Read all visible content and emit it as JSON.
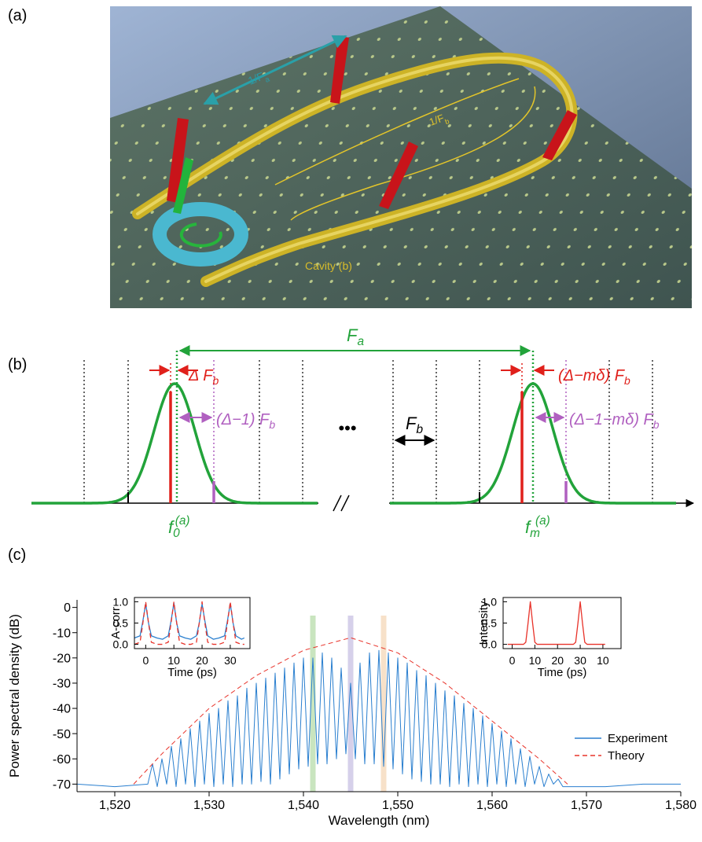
{
  "panel_a": {
    "label": "(a)",
    "annotations": [
      {
        "text": "1/F",
        "sub": "a"
      },
      {
        "text": "1/F",
        "sub": "b"
      },
      {
        "text": "Cavity (b)"
      }
    ]
  },
  "panel_b": {
    "label": "(b)",
    "annotations": [
      {
        "text": "F",
        "sub": "a"
      },
      {
        "text": "Δ F",
        "sub": "b"
      },
      {
        "text": "(Δ−mδ) F",
        "sub": "b"
      },
      {
        "text": "(Δ−1) F",
        "sub": "b"
      },
      {
        "text": "(Δ−1−mδ) F",
        "sub": "b"
      },
      {
        "text": "•••"
      },
      {
        "text": "F",
        "sub": "b"
      },
      {
        "text": "f",
        "sub": "0",
        "sup": "(a)"
      },
      {
        "text": "f",
        "sub": "m",
        "sup": "(a)"
      }
    ]
  },
  "panel_c": {
    "label": "(c)"
  },
  "chart_data": [
    {
      "type": "line",
      "xlabel": "Wavelength (nm)",
      "ylabel": "Power spectral density (dB)",
      "xlim": [
        1516,
        1580
      ],
      "ylim": [
        -73,
        3
      ],
      "xticks": [
        {
          "value": 1520,
          "label": "1,520"
        },
        {
          "value": 1530,
          "label": "1,530"
        },
        {
          "value": 1540,
          "label": "1,540"
        },
        {
          "value": 1550,
          "label": "1,550"
        },
        {
          "value": 1560,
          "label": "1,560"
        },
        {
          "value": 1570,
          "label": "1,570"
        },
        {
          "value": 1580,
          "label": "1,580"
        }
      ],
      "yticks": [
        0,
        -10,
        -20,
        -30,
        -40,
        -50,
        -60,
        -70
      ],
      "legend": "right",
      "bands": [
        {
          "x": 1541,
          "color": "#bfe0b4"
        },
        {
          "x": 1545,
          "color": "#cfc8e6"
        },
        {
          "x": 1548.5,
          "color": "#f6dcc0"
        }
      ],
      "series": [
        {
          "name": "Experiment",
          "color": "#2a7fcf",
          "linestyle": "solid",
          "x": [
            1516,
            1520,
            1523.5,
            1524,
            1524.5,
            1525,
            1525.5,
            1526,
            1526.5,
            1527,
            1527.5,
            1528,
            1528.5,
            1529,
            1529.5,
            1530,
            1530.5,
            1531,
            1531.5,
            1532,
            1532.5,
            1533,
            1533.5,
            1534,
            1534.5,
            1535,
            1535.5,
            1536,
            1536.5,
            1537,
            1537.5,
            1538,
            1538.5,
            1539,
            1539.5,
            1540,
            1540.5,
            1541,
            1541.5,
            1542,
            1542.5,
            1543,
            1543.5,
            1544,
            1544.5,
            1545,
            1545.5,
            1546,
            1546.5,
            1547,
            1547.5,
            1548,
            1548.5,
            1549,
            1549.5,
            1550,
            1550.5,
            1551,
            1551.5,
            1552,
            1552.5,
            1553,
            1553.5,
            1554,
            1554.5,
            1555,
            1555.5,
            1556,
            1556.5,
            1557,
            1557.5,
            1558,
            1558.5,
            1559,
            1559.5,
            1560,
            1560.5,
            1561,
            1561.5,
            1562,
            1562.5,
            1563,
            1563.5,
            1564,
            1564.5,
            1565,
            1565.5,
            1566,
            1566.5,
            1567,
            1567.5,
            1572,
            1576,
            1580
          ],
          "values": [
            -70,
            -71,
            -70,
            -62,
            -71,
            -60,
            -70,
            -55,
            -71,
            -52,
            -70,
            -48,
            -71,
            -45,
            -70,
            -42,
            -71,
            -40,
            -70,
            -37,
            -71,
            -35,
            -70,
            -32,
            -70,
            -30,
            -69,
            -28,
            -70,
            -26,
            -68,
            -24,
            -66,
            -22,
            -64,
            -20,
            -63,
            -20,
            -62,
            -18,
            -62,
            -20,
            -60,
            -24,
            -58,
            -30,
            -60,
            -22,
            -62,
            -18,
            -62,
            -17,
            -63,
            -18,
            -64,
            -20,
            -66,
            -22,
            -68,
            -25,
            -69,
            -27,
            -70,
            -30,
            -70,
            -33,
            -71,
            -35,
            -70,
            -38,
            -71,
            -40,
            -70,
            -43,
            -71,
            -46,
            -70,
            -49,
            -71,
            -52,
            -70,
            -56,
            -71,
            -59,
            -70,
            -63,
            -71,
            -66,
            -70,
            -68,
            -71,
            -71,
            -70,
            -70
          ]
        },
        {
          "name": "Theory",
          "color": "#e8332a",
          "linestyle": "dashed",
          "x": [
            1522,
            1525,
            1530,
            1535,
            1540,
            1545,
            1550,
            1555,
            1560,
            1565,
            1568
          ],
          "values": [
            -70,
            -58,
            -40,
            -27,
            -17,
            -12,
            -18,
            -30,
            -45,
            -60,
            -70
          ]
        }
      ]
    },
    {
      "type": "line",
      "xlabel": "Time (ps)",
      "ylabel": "A-corr",
      "xlim": [
        -4,
        37
      ],
      "ylim": [
        -0.1,
        1.1
      ],
      "xticks": [
        0,
        10,
        20,
        30
      ],
      "yticks": [
        {
          "value": 0,
          "label": "0.0"
        },
        {
          "value": 0.5,
          "label": "0.5"
        },
        {
          "value": 1,
          "label": "1.0"
        }
      ],
      "series": [
        {
          "color": "#2a7fcf",
          "linestyle": "solid",
          "x": [
            -4,
            -2,
            -1,
            0,
            1,
            2,
            4,
            6,
            8,
            9,
            10,
            11,
            12,
            14,
            16,
            18,
            19,
            20,
            21,
            22,
            24,
            26,
            28,
            29,
            30,
            31,
            32,
            34,
            35
          ],
          "values": [
            0.15,
            0.2,
            0.55,
            0.95,
            0.5,
            0.2,
            0.15,
            0.12,
            0.2,
            0.55,
            0.97,
            0.5,
            0.2,
            0.15,
            0.12,
            0.2,
            0.5,
            0.95,
            0.55,
            0.2,
            0.12,
            0.15,
            0.2,
            0.55,
            0.96,
            0.5,
            0.2,
            0.12,
            0.15
          ]
        },
        {
          "color": "#e8332a",
          "linestyle": "dashed",
          "x": [
            -4,
            -2,
            -1,
            0,
            1,
            2,
            4,
            6,
            8,
            9,
            10,
            11,
            12,
            14,
            16,
            18,
            19,
            20,
            21,
            22,
            24,
            26,
            28,
            29,
            30,
            31,
            32,
            34,
            35
          ],
          "values": [
            0,
            0.05,
            0.5,
            1,
            0.5,
            0.05,
            0,
            0,
            0.05,
            0.5,
            1,
            0.5,
            0.05,
            0,
            0,
            0.05,
            0.5,
            1,
            0.5,
            0.05,
            0,
            0,
            0.05,
            0.5,
            1,
            0.5,
            0.05,
            0,
            0
          ]
        }
      ]
    },
    {
      "type": "line",
      "xlabel": "Time (ps)",
      "ylabel": "Intensity",
      "xlim": [
        -4,
        48
      ],
      "ylim": [
        -0.1,
        1.1
      ],
      "xticks": [
        0,
        10,
        20,
        30,
        {
          "value": 40,
          "label": "10"
        }
      ],
      "yticks": [
        {
          "value": 0,
          "label": "0.0"
        },
        {
          "value": 0.5,
          "label": "0.5"
        },
        {
          "value": 1,
          "label": "1.0"
        }
      ],
      "series": [
        {
          "color": "#e8332a",
          "linestyle": "solid",
          "x": [
            -2,
            5,
            6,
            7,
            8,
            9,
            10,
            11,
            20,
            27,
            28,
            29,
            30,
            31,
            32,
            33,
            41
          ],
          "values": [
            0,
            0,
            0.05,
            0.5,
            1,
            0.5,
            0.05,
            0,
            0,
            0,
            0.05,
            0.5,
            1,
            0.5,
            0.05,
            0,
            0
          ]
        }
      ]
    }
  ]
}
